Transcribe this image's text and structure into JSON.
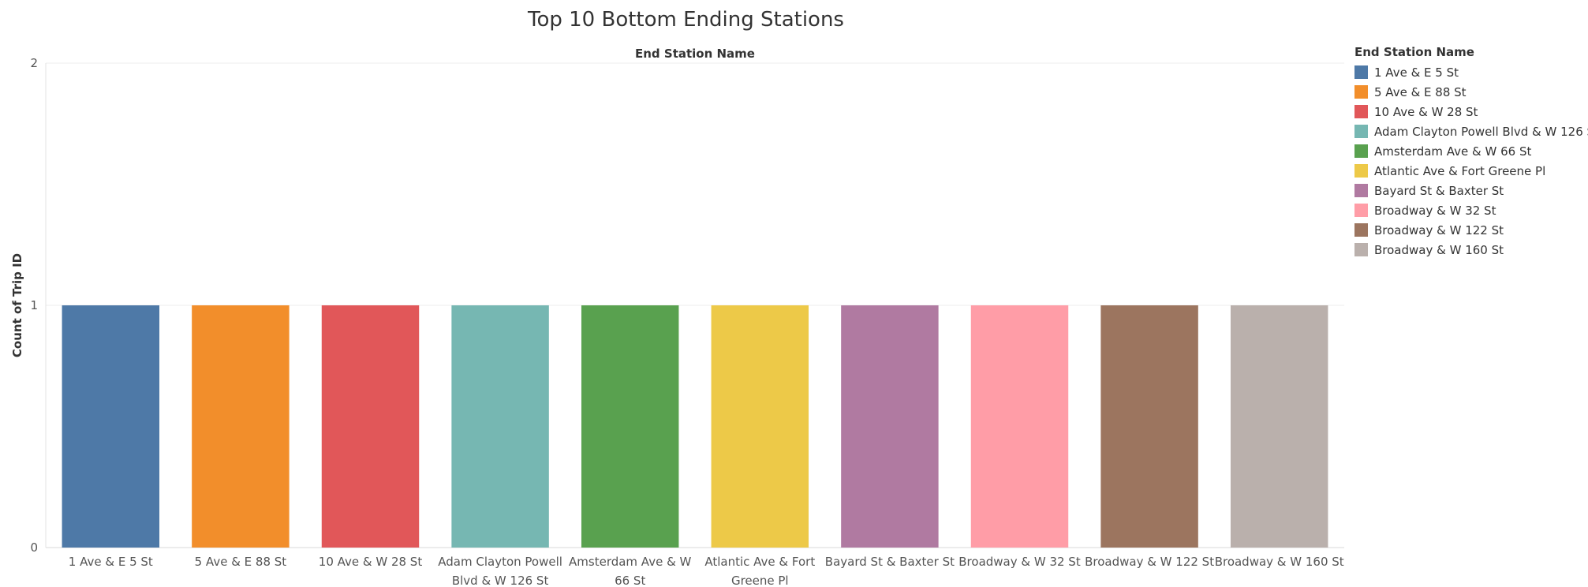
{
  "chart_data": {
    "type": "bar",
    "title": "Top 10 Bottom Ending Stations",
    "column_header": "End Station Name",
    "ylabel": "Count of Trip ID",
    "ylim": [
      0,
      2
    ],
    "yticks": [
      0,
      1,
      2
    ],
    "grid": true,
    "legend": {
      "title": "End Station Name",
      "position": "right"
    },
    "categories": [
      "1 Ave & E 5 St",
      "5 Ave & E 88 St",
      "10 Ave & W 28 St",
      "Adam Clayton Powell Blvd & W 126 St",
      "Amsterdam Ave & W 66 St",
      "Atlantic Ave & Fort Greene Pl",
      "Bayard St & Baxter St",
      "Broadway & W 32 St",
      "Broadway & W 122 St",
      "Broadway & W 160 St"
    ],
    "category_label_lines": [
      [
        "1 Ave & E 5 St"
      ],
      [
        "5 Ave & E 88 St"
      ],
      [
        "10 Ave & W 28 St"
      ],
      [
        "Adam Clayton Powell",
        "Blvd & W 126 St"
      ],
      [
        "Amsterdam Ave & W",
        "66 St"
      ],
      [
        "Atlantic Ave & Fort",
        "Greene Pl"
      ],
      [
        "Bayard St & Baxter St"
      ],
      [
        "Broadway & W 32 St"
      ],
      [
        "Broadway & W 122 St"
      ],
      [
        "Broadway & W 160 St"
      ]
    ],
    "values": [
      1,
      1,
      1,
      1,
      1,
      1,
      1,
      1,
      1,
      1
    ],
    "colors": [
      "#4e79a7",
      "#f28e2b",
      "#e15759",
      "#76b7b2",
      "#59a14f",
      "#edc948",
      "#b07aa1",
      "#ff9da7",
      "#9c755f",
      "#bab0ac"
    ]
  }
}
